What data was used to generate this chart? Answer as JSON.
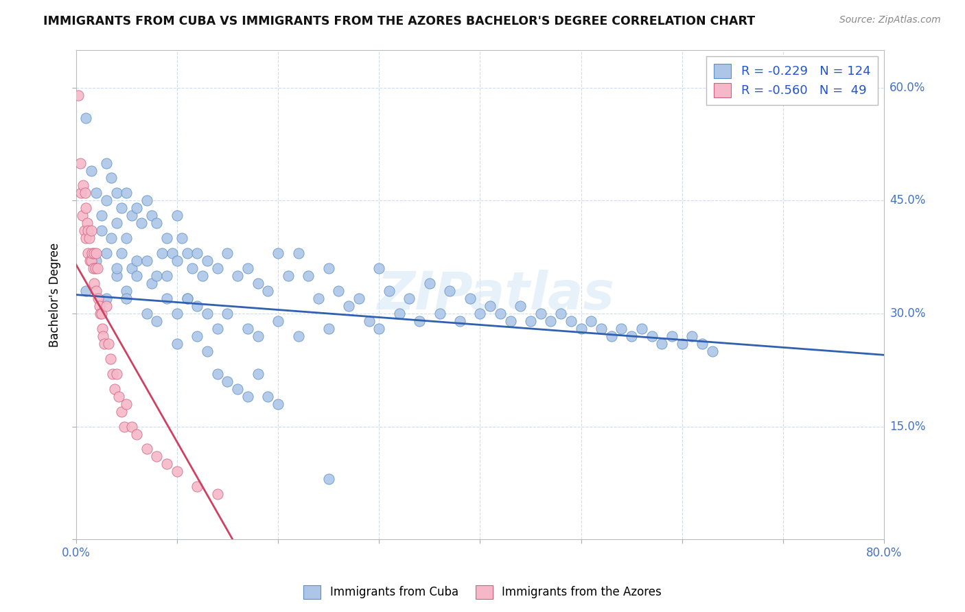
{
  "title": "IMMIGRANTS FROM CUBA VS IMMIGRANTS FROM THE AZORES BACHELOR'S DEGREE CORRELATION CHART",
  "source_text": "Source: ZipAtlas.com",
  "ylabel": "Bachelor's Degree",
  "xlim": [
    0.0,
    0.8
  ],
  "ylim": [
    0.0,
    0.65
  ],
  "xticks": [
    0.0,
    0.1,
    0.2,
    0.3,
    0.4,
    0.5,
    0.6,
    0.7,
    0.8
  ],
  "yticks": [
    0.0,
    0.15,
    0.3,
    0.45,
    0.6
  ],
  "yticklabels_right": [
    "",
    "15.0%",
    "30.0%",
    "45.0%",
    "60.0%"
  ],
  "blue_R": -0.229,
  "blue_N": 124,
  "pink_R": -0.56,
  "pink_N": 49,
  "blue_color": "#adc6e8",
  "pink_color": "#f5b8c8",
  "blue_edge_color": "#5b8ec4",
  "pink_edge_color": "#d06080",
  "blue_line_color": "#3060b0",
  "pink_line_color": "#d04060",
  "watermark": "ZIPatlas",
  "legend_label_blue": "Immigrants from Cuba",
  "legend_label_pink": "Immigrants from the Azores",
  "blue_line_x0": 0.0,
  "blue_line_x1": 0.8,
  "blue_line_y0": 0.325,
  "blue_line_y1": 0.245,
  "pink_line_x0": 0.0,
  "pink_line_x1": 0.155,
  "pink_line_y0": 0.365,
  "pink_line_y1": 0.0,
  "blue_scatter_x": [
    0.01,
    0.015,
    0.02,
    0.025,
    0.025,
    0.03,
    0.03,
    0.03,
    0.035,
    0.035,
    0.04,
    0.04,
    0.04,
    0.045,
    0.045,
    0.05,
    0.05,
    0.05,
    0.055,
    0.055,
    0.06,
    0.06,
    0.065,
    0.07,
    0.07,
    0.075,
    0.075,
    0.08,
    0.08,
    0.085,
    0.09,
    0.09,
    0.095,
    0.1,
    0.1,
    0.1,
    0.105,
    0.11,
    0.11,
    0.115,
    0.12,
    0.12,
    0.125,
    0.13,
    0.13,
    0.14,
    0.14,
    0.15,
    0.15,
    0.16,
    0.17,
    0.17,
    0.18,
    0.18,
    0.19,
    0.2,
    0.2,
    0.21,
    0.22,
    0.22,
    0.23,
    0.24,
    0.25,
    0.25,
    0.26,
    0.27,
    0.28,
    0.29,
    0.3,
    0.3,
    0.31,
    0.32,
    0.33,
    0.34,
    0.35,
    0.36,
    0.37,
    0.38,
    0.39,
    0.4,
    0.41,
    0.42,
    0.43,
    0.44,
    0.45,
    0.46,
    0.47,
    0.48,
    0.49,
    0.5,
    0.51,
    0.52,
    0.53,
    0.54,
    0.55,
    0.56,
    0.57,
    0.58,
    0.59,
    0.6,
    0.61,
    0.62,
    0.63,
    0.01,
    0.02,
    0.03,
    0.04,
    0.05,
    0.06,
    0.07,
    0.08,
    0.09,
    0.1,
    0.11,
    0.12,
    0.13,
    0.14,
    0.15,
    0.16,
    0.17,
    0.18,
    0.19,
    0.2,
    0.25
  ],
  "blue_scatter_y": [
    0.56,
    0.49,
    0.46,
    0.43,
    0.41,
    0.5,
    0.45,
    0.38,
    0.48,
    0.4,
    0.46,
    0.42,
    0.35,
    0.44,
    0.38,
    0.46,
    0.4,
    0.33,
    0.43,
    0.36,
    0.44,
    0.37,
    0.42,
    0.45,
    0.37,
    0.43,
    0.34,
    0.42,
    0.35,
    0.38,
    0.4,
    0.32,
    0.38,
    0.43,
    0.37,
    0.3,
    0.4,
    0.38,
    0.32,
    0.36,
    0.38,
    0.31,
    0.35,
    0.37,
    0.3,
    0.36,
    0.28,
    0.38,
    0.3,
    0.35,
    0.36,
    0.28,
    0.34,
    0.27,
    0.33,
    0.38,
    0.29,
    0.35,
    0.38,
    0.27,
    0.35,
    0.32,
    0.36,
    0.28,
    0.33,
    0.31,
    0.32,
    0.29,
    0.36,
    0.28,
    0.33,
    0.3,
    0.32,
    0.29,
    0.34,
    0.3,
    0.33,
    0.29,
    0.32,
    0.3,
    0.31,
    0.3,
    0.29,
    0.31,
    0.29,
    0.3,
    0.29,
    0.3,
    0.29,
    0.28,
    0.29,
    0.28,
    0.27,
    0.28,
    0.27,
    0.28,
    0.27,
    0.26,
    0.27,
    0.26,
    0.27,
    0.26,
    0.25,
    0.33,
    0.37,
    0.32,
    0.36,
    0.32,
    0.35,
    0.3,
    0.29,
    0.35,
    0.26,
    0.32,
    0.27,
    0.25,
    0.22,
    0.21,
    0.2,
    0.19,
    0.22,
    0.19,
    0.18,
    0.08
  ],
  "pink_scatter_x": [
    0.002,
    0.004,
    0.005,
    0.006,
    0.007,
    0.008,
    0.009,
    0.01,
    0.01,
    0.011,
    0.012,
    0.012,
    0.013,
    0.014,
    0.015,
    0.015,
    0.016,
    0.017,
    0.018,
    0.018,
    0.019,
    0.02,
    0.02,
    0.021,
    0.022,
    0.023,
    0.024,
    0.025,
    0.026,
    0.027,
    0.028,
    0.03,
    0.032,
    0.034,
    0.036,
    0.038,
    0.04,
    0.042,
    0.045,
    0.048,
    0.05,
    0.055,
    0.06,
    0.07,
    0.08,
    0.09,
    0.1,
    0.12,
    0.14
  ],
  "pink_scatter_y": [
    0.59,
    0.5,
    0.46,
    0.43,
    0.47,
    0.41,
    0.46,
    0.44,
    0.4,
    0.42,
    0.41,
    0.38,
    0.4,
    0.37,
    0.41,
    0.37,
    0.38,
    0.36,
    0.38,
    0.34,
    0.36,
    0.38,
    0.33,
    0.36,
    0.32,
    0.31,
    0.3,
    0.3,
    0.28,
    0.27,
    0.26,
    0.31,
    0.26,
    0.24,
    0.22,
    0.2,
    0.22,
    0.19,
    0.17,
    0.15,
    0.18,
    0.15,
    0.14,
    0.12,
    0.11,
    0.1,
    0.09,
    0.07,
    0.06
  ]
}
